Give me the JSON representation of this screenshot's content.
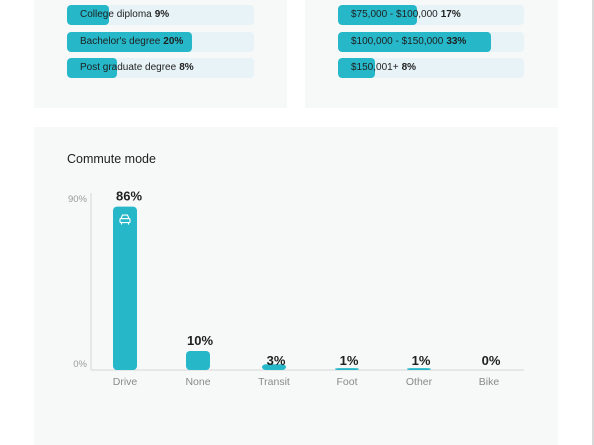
{
  "education": {
    "rows": [
      {
        "label": "College diploma",
        "percent": "9%",
        "value": 9
      },
      {
        "label": "Bachelor's degree",
        "percent": "20%",
        "value": 20
      },
      {
        "label": "Post graduate degree",
        "percent": "8%",
        "value": 8
      }
    ]
  },
  "income": {
    "rows": [
      {
        "label": "$75,000 - $100,000",
        "percent": "17%",
        "value": 17
      },
      {
        "label": "$100,000 - $150,000",
        "percent": "33%",
        "value": 33
      },
      {
        "label": "$150,001+",
        "percent": "8%",
        "value": 8
      }
    ]
  },
  "commute": {
    "title": "Commute mode",
    "icon": "car-icon"
  },
  "chart_data": {
    "type": "bar",
    "title": "Commute mode",
    "categories": [
      "Drive",
      "None",
      "Transit",
      "Foot",
      "Other",
      "Bike"
    ],
    "values": [
      86,
      10,
      3,
      1,
      1,
      0
    ],
    "value_labels": [
      "86%",
      "10%",
      "3%",
      "1%",
      "1%",
      "0%"
    ],
    "y_ticks": [
      "90%",
      "0%"
    ],
    "ylim": [
      0,
      90
    ],
    "grid": false,
    "bar_color": "#26b7c9"
  },
  "colors": {
    "accent": "#26b7c9",
    "track": "#e7f3f7",
    "panel": "#f7f8f8"
  }
}
